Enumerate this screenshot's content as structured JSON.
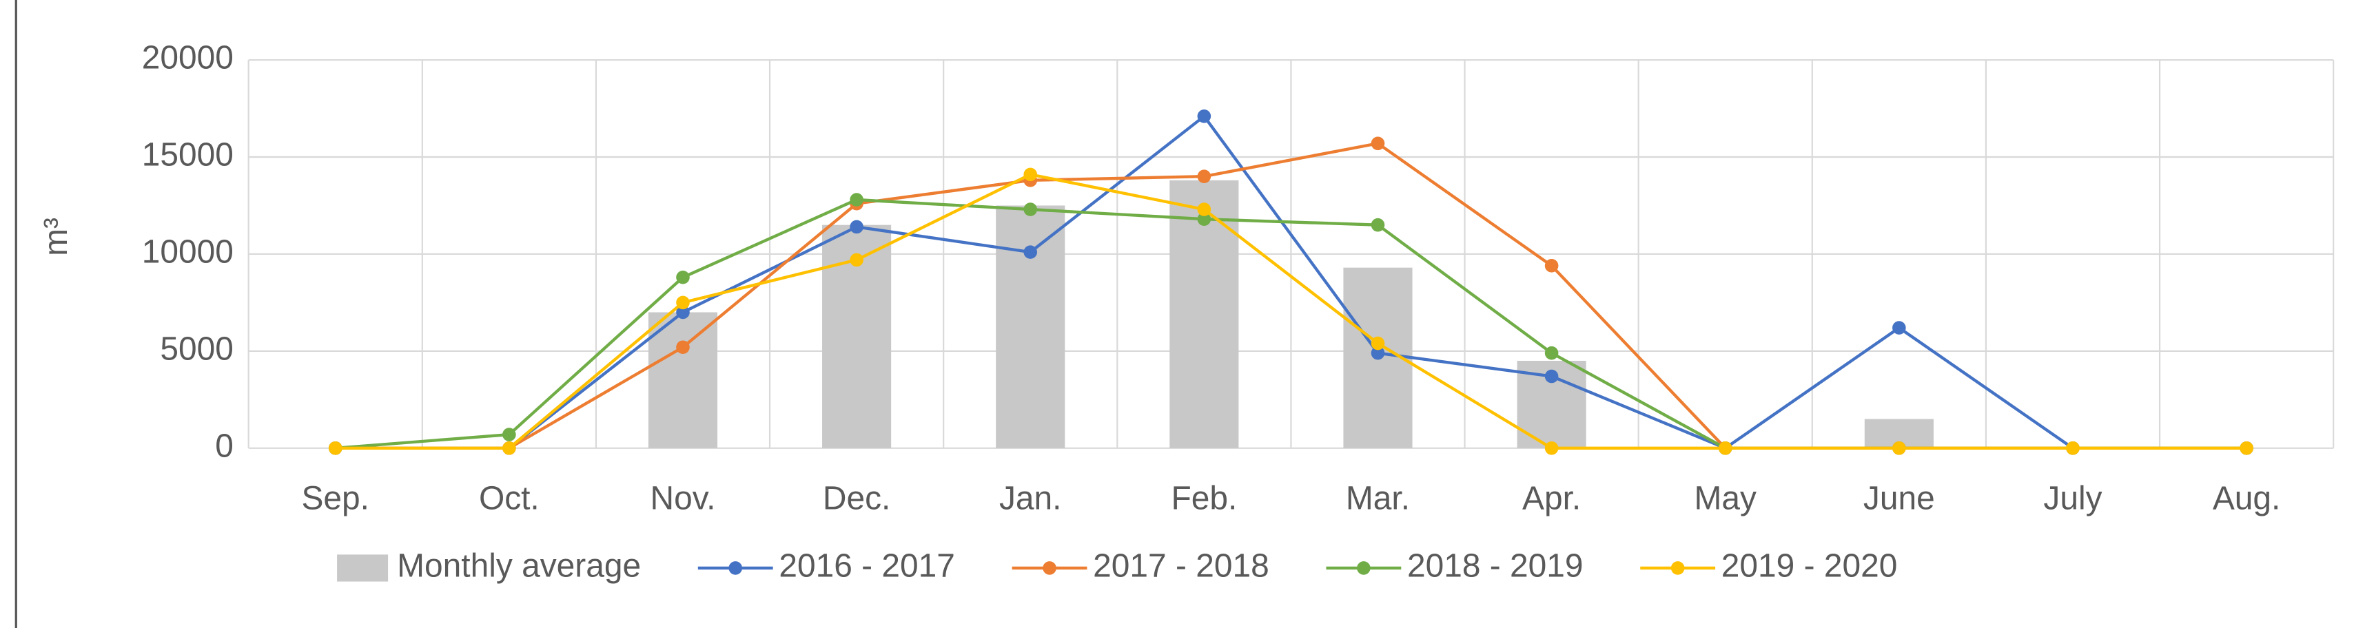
{
  "chart_data": {
    "type": "combo",
    "y_label": "m³",
    "categories": [
      "Sep.",
      "Oct.",
      "Nov.",
      "Dec.",
      "Jan.",
      "Feb.",
      "Mar.",
      "Apr.",
      "May",
      "June",
      "July",
      "Aug."
    ],
    "ylim": [
      0,
      20000
    ],
    "yticks": [
      0,
      5000,
      10000,
      15000,
      20000
    ],
    "grid": true,
    "legend": "bottom",
    "series": [
      {
        "name": "Monthly average",
        "type": "bar",
        "color": "#c8c8c8",
        "values": [
          0,
          0,
          7000,
          11500,
          12500,
          13800,
          9300,
          4500,
          0,
          1500,
          0,
          0
        ]
      },
      {
        "name": "2016 - 2017",
        "type": "line",
        "color": "#4472c4",
        "values": [
          0,
          0,
          7000,
          11400,
          10100,
          17100,
          4900,
          3700,
          0,
          6200,
          0,
          0
        ]
      },
      {
        "name": "2017 - 2018",
        "type": "line",
        "color": "#ed7d31",
        "values": [
          0,
          0,
          5200,
          12600,
          13800,
          14000,
          15700,
          9400,
          0,
          0,
          0,
          0
        ]
      },
      {
        "name": "2018 - 2019",
        "type": "line",
        "color": "#70ad47",
        "values": [
          0,
          700,
          8800,
          12800,
          12300,
          11800,
          11500,
          4900,
          0,
          0,
          0,
          0
        ]
      },
      {
        "name": "2019 - 2020",
        "type": "line",
        "color": "#ffc000",
        "values": [
          0,
          0,
          7500,
          9700,
          14100,
          12300,
          5400,
          0,
          0,
          0,
          0,
          0
        ]
      }
    ]
  }
}
